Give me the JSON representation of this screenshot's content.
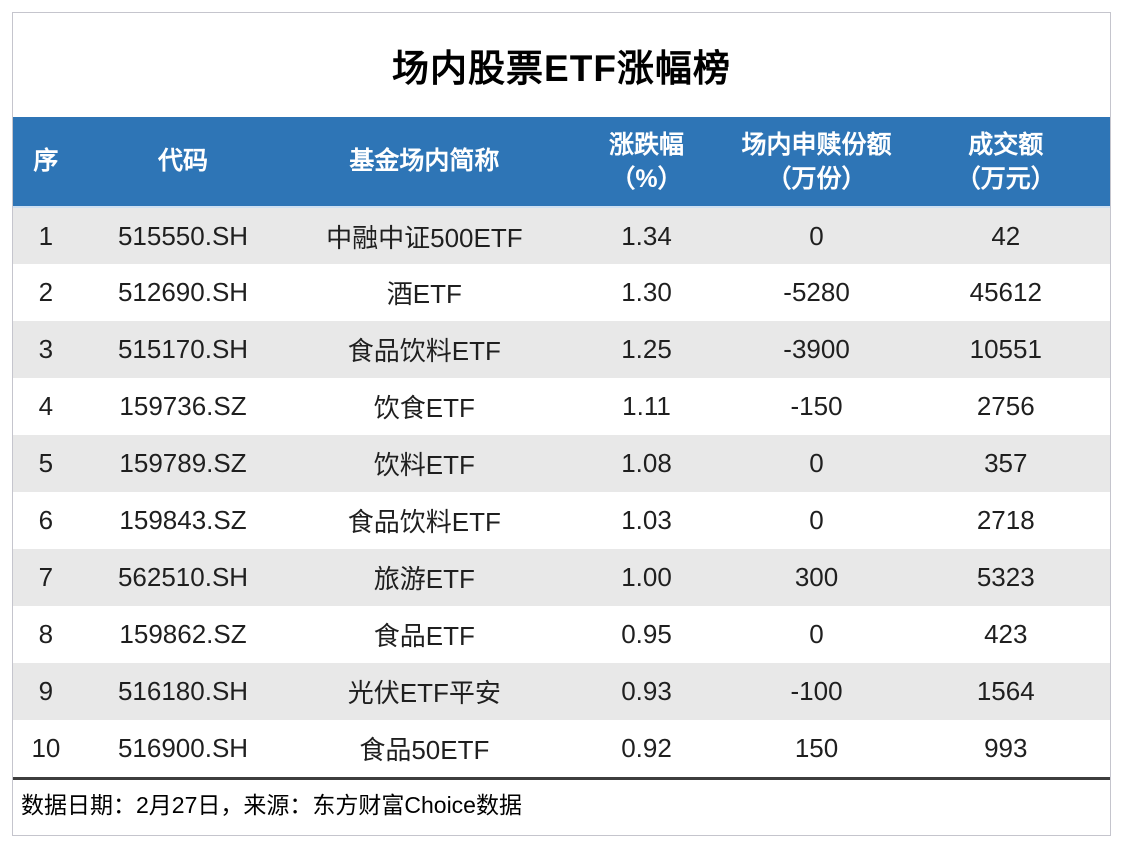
{
  "title": "场内股票ETF涨幅榜",
  "table": {
    "columns": [
      {
        "label": "序",
        "unit": ""
      },
      {
        "label": "代码",
        "unit": ""
      },
      {
        "label": "基金场内简称",
        "unit": ""
      },
      {
        "label": "涨跌幅",
        "unit": "（%）"
      },
      {
        "label": "场内申赎份额",
        "unit": "（万份）"
      },
      {
        "label": "成交额",
        "unit": "（万元）"
      }
    ],
    "rows": [
      [
        "1",
        "515550.SH",
        "中融中证500ETF",
        "1.34",
        "0",
        "42"
      ],
      [
        "2",
        "512690.SH",
        "酒ETF",
        "1.30",
        "-5280",
        "45612"
      ],
      [
        "3",
        "515170.SH",
        "食品饮料ETF",
        "1.25",
        "-3900",
        "10551"
      ],
      [
        "4",
        "159736.SZ",
        "饮食ETF",
        "1.11",
        "-150",
        "2756"
      ],
      [
        "5",
        "159789.SZ",
        "饮料ETF",
        "1.08",
        "0",
        "357"
      ],
      [
        "6",
        "159843.SZ",
        "食品饮料ETF",
        "1.03",
        "0",
        "2718"
      ],
      [
        "7",
        "562510.SH",
        "旅游ETF",
        "1.00",
        "300",
        "5323"
      ],
      [
        "8",
        "159862.SZ",
        "食品ETF",
        "0.95",
        "0",
        "423"
      ],
      [
        "9",
        "516180.SH",
        "光伏ETF平安",
        "0.93",
        "-100",
        "1564"
      ],
      [
        "10",
        "516900.SH",
        "食品50ETF",
        "0.92",
        "150",
        "993"
      ]
    ]
  },
  "footer": {
    "text": "数据日期：2月27日，来源：东方财富Choice数据"
  },
  "colors": {
    "header_bg": "#2E75B6",
    "header_text": "#FFFFFF",
    "row_alt_bg": "#E8E8E8",
    "row_bg": "#FFFFFF",
    "text_color": "#1F1F1F",
    "card_border": "#C5C5CD",
    "footer_border": "#3D3D3D"
  },
  "chart_data": {
    "type": "table",
    "title": "场内股票ETF涨幅榜",
    "columns": [
      "序",
      "代码",
      "基金场内简称",
      "涨跌幅（%）",
      "场内申赎份额（万份）",
      "成交额（万元）"
    ],
    "rows": [
      [
        1,
        "515550.SH",
        "中融中证500ETF",
        1.34,
        0,
        42
      ],
      [
        2,
        "512690.SH",
        "酒ETF",
        1.3,
        -5280,
        45612
      ],
      [
        3,
        "515170.SH",
        "食品饮料ETF",
        1.25,
        -3900,
        10551
      ],
      [
        4,
        "159736.SZ",
        "饮食ETF",
        1.11,
        -150,
        2756
      ],
      [
        5,
        "159789.SZ",
        "饮料ETF",
        1.08,
        0,
        357
      ],
      [
        6,
        "159843.SZ",
        "食品饮料ETF",
        1.03,
        0,
        2718
      ],
      [
        7,
        "562510.SH",
        "旅游ETF",
        1.0,
        300,
        5323
      ],
      [
        8,
        "159862.SZ",
        "食品ETF",
        0.95,
        0,
        423
      ],
      [
        9,
        "516180.SH",
        "光伏ETF平安",
        0.93,
        -100,
        1564
      ],
      [
        10,
        "516900.SH",
        "食品50ETF",
        0.92,
        150,
        993
      ]
    ],
    "source_note": "数据日期：2月27日，来源：东方财富Choice数据",
    "layout_hints": {
      "header_style": "blue band, white bold text, two-line headers with unit row",
      "row_striping": "odd rows light gray, even rows white",
      "footer": "left-aligned source line in bordered box with dark top rule"
    }
  }
}
